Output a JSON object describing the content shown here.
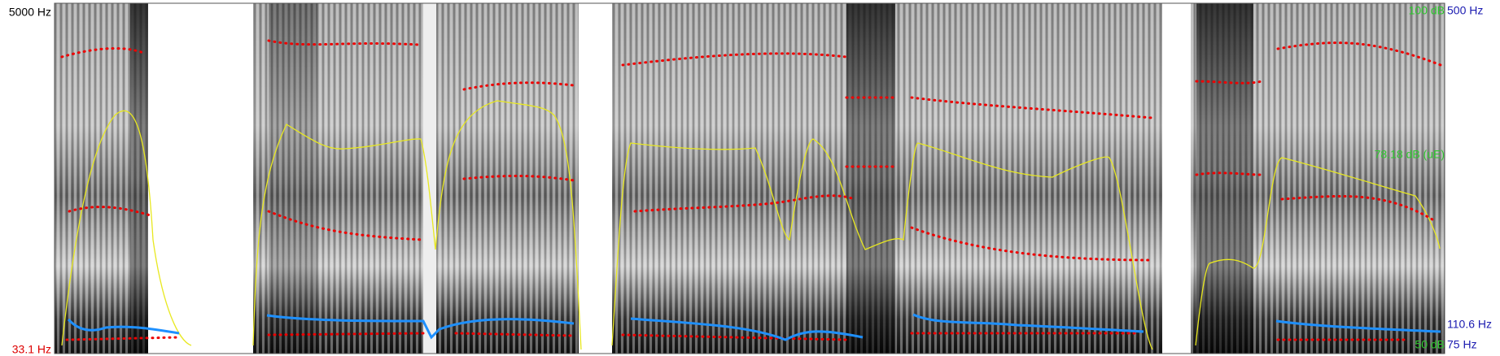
{
  "left_labels": {
    "top": "5000 Hz",
    "bottom": "33.1 Hz"
  },
  "right_labels": {
    "intensity_top": "100 dB",
    "pitch_top": "500 Hz",
    "intensity_mean": "78.18 dB (uE)",
    "pitch_cursor": "110.6 Hz",
    "intensity_bottom": "50 dB",
    "pitch_bottom": "75 Hz"
  }
}
